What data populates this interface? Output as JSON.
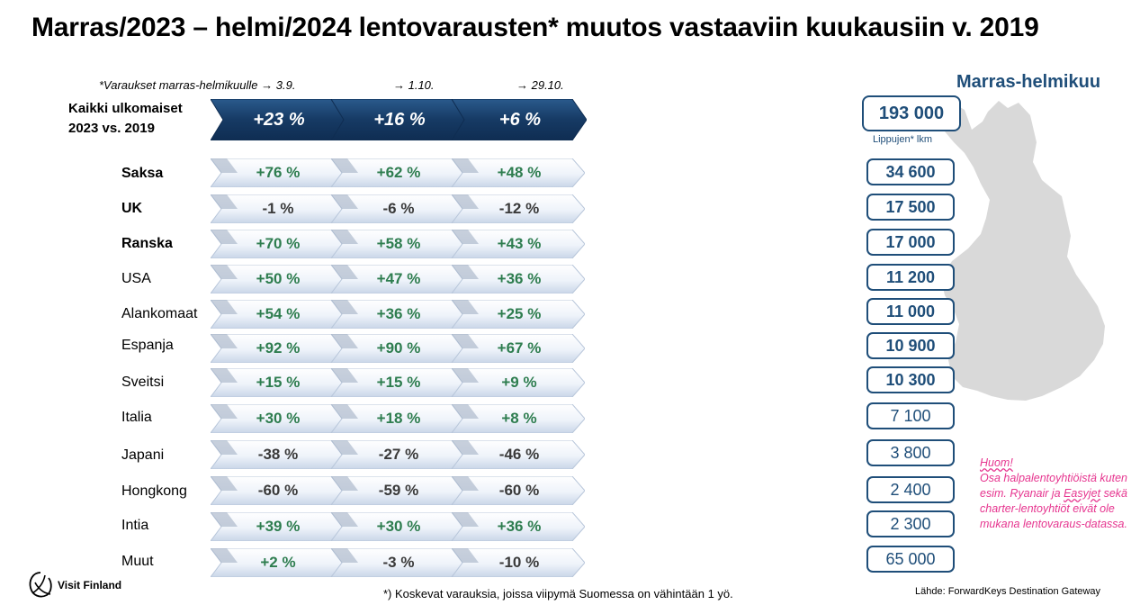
{
  "title": "Marras/2023 – helmi/2024 lentovarausten* muutos vastaaviin kuukausiin v. 2019",
  "booking_notes": [
    "*Varaukset marras-helmikuulle → 3.9.",
    "→ 1.10.",
    "→ 29.10."
  ],
  "all_foreign": {
    "label_line1": "Kaikki ulkomaiset",
    "label_line2": "2023 vs. 2019",
    "values": [
      "+23 %",
      "+16 %",
      "+6 %"
    ]
  },
  "countries": [
    {
      "name": "Saksa",
      "bold": true,
      "values": [
        "+76 %",
        "+62 %",
        "+48 %"
      ],
      "tickets": "34 600"
    },
    {
      "name": "UK",
      "bold": true,
      "values": [
        "-1 %",
        "-6 %",
        "-12 %"
      ],
      "tickets": "17 500"
    },
    {
      "name": "Ranska",
      "bold": true,
      "values": [
        "+70 %",
        "+58 %",
        "+43 %"
      ],
      "tickets": "17 000"
    },
    {
      "name": "USA",
      "bold": false,
      "values": [
        "+50 %",
        "+47 %",
        "+36 %"
      ],
      "tickets": "11 200"
    },
    {
      "name": "Alankomaat",
      "bold": false,
      "values": [
        "+54 %",
        "+36 %",
        "+25 %"
      ],
      "tickets": "11 000"
    },
    {
      "name": "Espanja",
      "bold": false,
      "values": [
        "+92 %",
        "+90 %",
        "+67 %"
      ],
      "tickets": "10 900"
    },
    {
      "name": "Sveitsi",
      "bold": false,
      "values": [
        "+15 %",
        "+15 %",
        "+9 %"
      ],
      "tickets": "10 300"
    },
    {
      "name": "Italia",
      "bold": false,
      "values": [
        "+30 %",
        "+18 %",
        "+8 %"
      ],
      "tickets": "7 100"
    },
    {
      "name": "Japani",
      "bold": false,
      "values": [
        "-38 %",
        "-27 %",
        "-46 %"
      ],
      "tickets": "3 800"
    },
    {
      "name": "Hongkong",
      "bold": false,
      "values": [
        "-60 %",
        "-59 %",
        "-60 %"
      ],
      "tickets": "2 400"
    },
    {
      "name": "Intia",
      "bold": false,
      "values": [
        "+39 %",
        "+30 %",
        "+36 %"
      ],
      "tickets": "2 300"
    },
    {
      "name": "Muut",
      "bold": false,
      "values": [
        "+2 %",
        "-3 %",
        "-10 %"
      ],
      "tickets": "65 000"
    }
  ],
  "region": {
    "title": "Marras-helmikuu",
    "total": "193 000",
    "total_label": "Lippujen* lkm"
  },
  "note": {
    "heading": "Huom!",
    "text_before": "Osa halpalentoyhtiöistä kuten esim. Ryanair ja ",
    "underlined": "Easyjet",
    "text_after": " sekä charter-lentoyhtiöt eivät ole mukana lentovaraus-datassa."
  },
  "footnote": "*) Koskevat varauksia, joissa viipymä Suomessa on vähintään 1 yö.",
  "source": "Lähde: ForwardKeys Destination Gateway",
  "logo_text": "Visit Finland",
  "colors": {
    "navy": "#1f4e79",
    "positive": "#2e7d4f",
    "negative": "#3a3a3a",
    "note": "#e6358f",
    "map": "#d9d9d9"
  }
}
